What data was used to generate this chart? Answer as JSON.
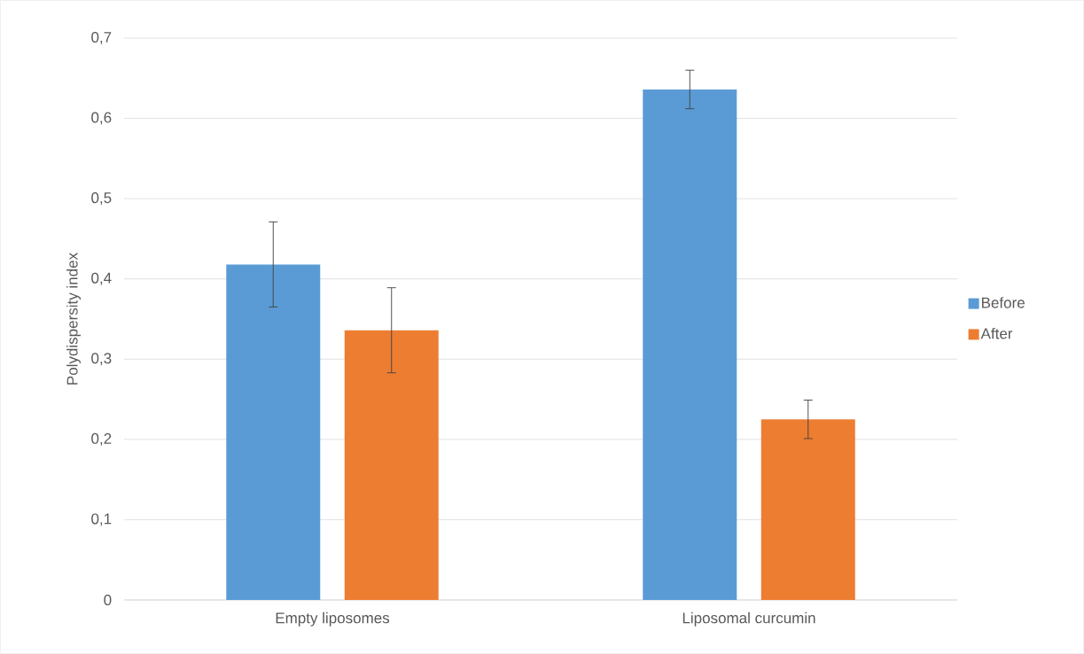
{
  "chart_data": {
    "type": "bar",
    "ylabel": "Polydispersity index",
    "categories": [
      "Empty liposomes",
      "Liposomal curcumin"
    ],
    "series": [
      {
        "name": "Before",
        "color": "#5b9bd5",
        "values": [
          0.418,
          0.636
        ],
        "errors": [
          0.053,
          0.024
        ]
      },
      {
        "name": "After",
        "color": "#ed7d31",
        "values": [
          0.336,
          0.225
        ],
        "errors": [
          0.053,
          0.024
        ]
      }
    ],
    "ylim": [
      0,
      0.7
    ],
    "yticks": [
      0,
      {
        "value": 0.1,
        "label": "0,1"
      },
      {
        "value": 0.2,
        "label": "0,2"
      },
      {
        "value": 0.3,
        "label": "0,3"
      },
      {
        "value": 0.4,
        "label": "0,4"
      },
      {
        "value": 0.5,
        "label": "0,5"
      },
      {
        "value": 0.6,
        "label": "0,6"
      },
      {
        "value": 0.7,
        "label": "0,7"
      }
    ],
    "grid": "y",
    "legend": "right"
  }
}
